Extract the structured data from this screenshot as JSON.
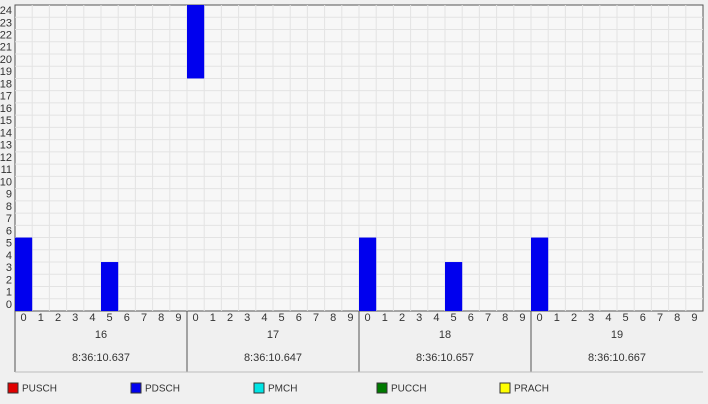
{
  "chart_data": {
    "type": "rb-grid",
    "ylim": [
      -0.5,
      24.5
    ],
    "yticks": [
      0,
      1,
      2,
      3,
      4,
      5,
      6,
      7,
      8,
      9,
      10,
      11,
      12,
      13,
      14,
      15,
      16,
      17,
      18,
      19,
      20,
      21,
      22,
      23,
      24
    ],
    "subframes": [
      0,
      1,
      2,
      3,
      4,
      5,
      6,
      7,
      8,
      9
    ],
    "frames": [
      {
        "number": 16,
        "time": "8:36:10.637"
      },
      {
        "number": 17,
        "time": "8:36:10.647"
      },
      {
        "number": 18,
        "time": "8:36:10.657"
      },
      {
        "number": 19,
        "time": "8:36:10.667"
      }
    ],
    "grid": true,
    "series": [
      {
        "name": "PUSCH",
        "color": "#e00000",
        "blocks": []
      },
      {
        "name": "PDSCH",
        "color": "#0000ee",
        "blocks": [
          {
            "frame": 16,
            "subframe": 0,
            "rb_start": 0,
            "rb_end": 5
          },
          {
            "frame": 16,
            "subframe": 5,
            "rb_start": 0,
            "rb_end": 3
          },
          {
            "frame": 17,
            "subframe": 0,
            "rb_start": 19,
            "rb_end": 24
          },
          {
            "frame": 18,
            "subframe": 0,
            "rb_start": 0,
            "rb_end": 5
          },
          {
            "frame": 18,
            "subframe": 5,
            "rb_start": 0,
            "rb_end": 3
          },
          {
            "frame": 19,
            "subframe": 0,
            "rb_start": 0,
            "rb_end": 5
          }
        ]
      },
      {
        "name": "PMCH",
        "color": "#00e5e5",
        "blocks": []
      },
      {
        "name": "PUCCH",
        "color": "#007a00",
        "blocks": []
      },
      {
        "name": "PRACH",
        "color": "#ffff00",
        "blocks": []
      }
    ]
  }
}
